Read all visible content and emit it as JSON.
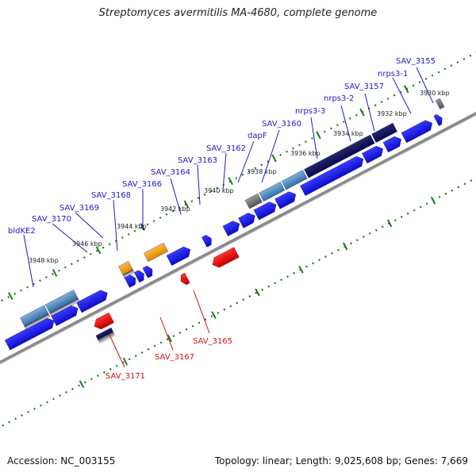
{
  "title": "Streptomyces avermitilis MA-4680, complete genome",
  "footer": {
    "accession": "Accession: NC_003155",
    "topology": "Topology: linear; Length: 9,025,608 bp; Genes: 7,669"
  },
  "colors": {
    "forward_label": "#1a1acc",
    "reverse_label": "#cc1111",
    "cds_forward": "#1c1ce6",
    "cds_reverse": "#e61010",
    "rna": "#f0a020",
    "tick": "#1a7a1a",
    "axis": "#888888"
  },
  "scale_labels": [
    "3948 kbp",
    "3946 kbp",
    "3944 kbp",
    "3942 kbp",
    "3940 kbp",
    "3938 kbp",
    "3936 kbp",
    "3934 kbp",
    "3932 kbp",
    "3930 kbp"
  ],
  "forward_genes": [
    "bldKE2",
    "SAV_3170",
    "SAV_3169",
    "SAV_3168",
    "SAV_3166",
    "SAV_3164",
    "SAV_3163",
    "SAV_3162",
    "dapF",
    "SAV_3160",
    "nrps3-3",
    "nrps3-2",
    "SAV_3157",
    "nrps3-1",
    "SAV_3155"
  ],
  "reverse_genes": [
    "SAV_3171",
    "SAV_3167",
    "SAV_3165"
  ]
}
